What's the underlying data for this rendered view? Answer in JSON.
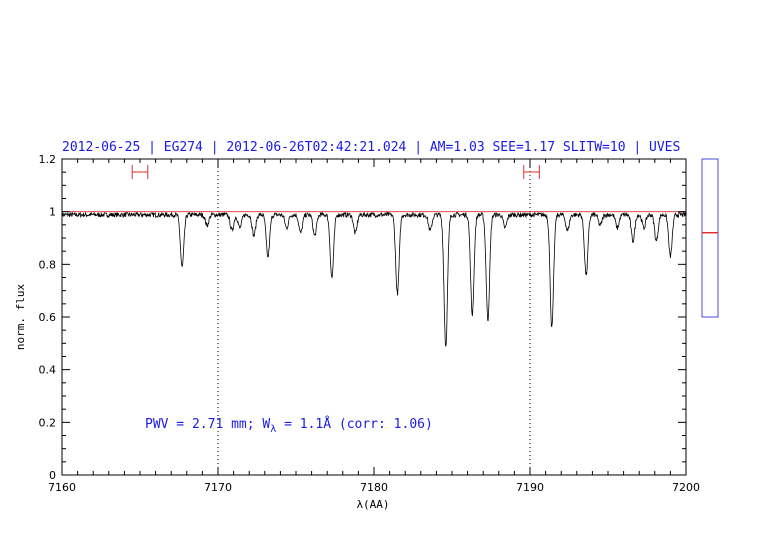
{
  "chart_data": {
    "type": "line",
    "title": "2012-06-25 | EG274 | 2012-06-26T02:42:21.024 | AM=1.03 SEE=1.17 SLITW=10 | UVES",
    "xlabel": "λ(AA)",
    "ylabel": "norm. flux",
    "xlim": [
      7160,
      7200
    ],
    "ylim": [
      0,
      1.2
    ],
    "x_ticks": [
      "7160",
      "7170",
      "7180",
      "7190",
      "7200"
    ],
    "y_ticks": [
      "0",
      "0.2",
      "0.4",
      "0.6",
      "0.8",
      "1",
      "1.2"
    ],
    "grid": false,
    "reference_lines": {
      "vertical": [
        7170,
        7190
      ],
      "horizontal": [
        1.0
      ]
    },
    "continuum_windows": [
      [
        7164.5,
        7165.5
      ],
      [
        7189.6,
        7190.6
      ]
    ],
    "series": [
      {
        "color": "#000000",
        "continuum": 1.0,
        "absorption_lines": [
          {
            "x": 7167.7,
            "depth": 0.2
          },
          {
            "x": 7169.3,
            "depth": 0.04
          },
          {
            "x": 7170.9,
            "depth": 0.06
          },
          {
            "x": 7171.4,
            "depth": 0.05
          },
          {
            "x": 7172.3,
            "depth": 0.08
          },
          {
            "x": 7173.2,
            "depth": 0.16
          },
          {
            "x": 7174.4,
            "depth": 0.05
          },
          {
            "x": 7175.3,
            "depth": 0.07
          },
          {
            "x": 7176.2,
            "depth": 0.08
          },
          {
            "x": 7177.3,
            "depth": 0.24
          },
          {
            "x": 7178.8,
            "depth": 0.07
          },
          {
            "x": 7181.5,
            "depth": 0.3
          },
          {
            "x": 7183.6,
            "depth": 0.06
          },
          {
            "x": 7184.6,
            "depth": 0.5
          },
          {
            "x": 7186.3,
            "depth": 0.38
          },
          {
            "x": 7187.3,
            "depth": 0.4
          },
          {
            "x": 7188.4,
            "depth": 0.05
          },
          {
            "x": 7191.4,
            "depth": 0.43
          },
          {
            "x": 7192.4,
            "depth": 0.06
          },
          {
            "x": 7193.6,
            "depth": 0.23
          },
          {
            "x": 7194.5,
            "depth": 0.04
          },
          {
            "x": 7195.6,
            "depth": 0.05
          },
          {
            "x": 7196.6,
            "depth": 0.1
          },
          {
            "x": 7197.3,
            "depth": 0.05
          },
          {
            "x": 7198.1,
            "depth": 0.1
          },
          {
            "x": 7199.0,
            "depth": 0.16
          }
        ]
      }
    ],
    "annotation": {
      "prefix": "PWV = 2.71 mm; W",
      "subscript": "λ",
      "suffix": " = 1.1Å (corr: 1.06)"
    },
    "side_gauge": {
      "ylim": [
        0,
        1.2
      ],
      "range": [
        0.6,
        1.2
      ],
      "marker": 0.92
    }
  },
  "colors": {
    "frame": "#000000",
    "spectrum": "#000000",
    "continuum": "#e23030",
    "text": "#1a1ae6",
    "gauge": "#4a4adf"
  }
}
